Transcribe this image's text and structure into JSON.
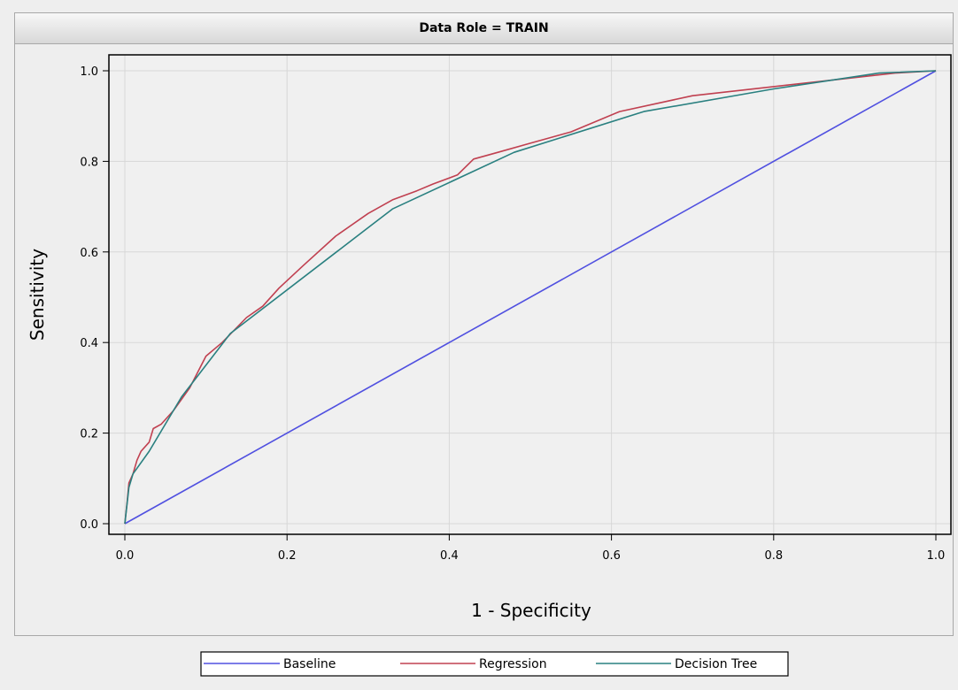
{
  "chart_data": {
    "type": "line",
    "title": "Data Role = TRAIN",
    "xlabel": "1 - Specificity",
    "ylabel": "Sensitivity",
    "xlim": [
      0,
      1
    ],
    "ylim": [
      0,
      1
    ],
    "x_ticks": [
      "0.0",
      "0.2",
      "0.4",
      "0.6",
      "0.8",
      "1.0"
    ],
    "y_ticks": [
      "0.0",
      "0.2",
      "0.4",
      "0.6",
      "0.8",
      "1.0"
    ],
    "grid": true,
    "legend_position": "bottom",
    "series": [
      {
        "name": "Baseline",
        "color": "#5050e0",
        "points": [
          [
            0,
            0
          ],
          [
            1,
            1
          ]
        ]
      },
      {
        "name": "Regression",
        "color": "#c04050",
        "points": [
          [
            0,
            0
          ],
          [
            0.003,
            0.05
          ],
          [
            0.005,
            0.09
          ],
          [
            0.01,
            0.11
          ],
          [
            0.015,
            0.14
          ],
          [
            0.02,
            0.16
          ],
          [
            0.03,
            0.18
          ],
          [
            0.035,
            0.21
          ],
          [
            0.045,
            0.22
          ],
          [
            0.06,
            0.25
          ],
          [
            0.08,
            0.3
          ],
          [
            0.1,
            0.37
          ],
          [
            0.12,
            0.4
          ],
          [
            0.15,
            0.455
          ],
          [
            0.17,
            0.48
          ],
          [
            0.19,
            0.52
          ],
          [
            0.22,
            0.57
          ],
          [
            0.26,
            0.635
          ],
          [
            0.3,
            0.685
          ],
          [
            0.33,
            0.715
          ],
          [
            0.36,
            0.735
          ],
          [
            0.38,
            0.75
          ],
          [
            0.41,
            0.77
          ],
          [
            0.43,
            0.805
          ],
          [
            0.46,
            0.82
          ],
          [
            0.5,
            0.84
          ],
          [
            0.55,
            0.865
          ],
          [
            0.61,
            0.91
          ],
          [
            0.7,
            0.945
          ],
          [
            0.8,
            0.965
          ],
          [
            0.9,
            0.985
          ],
          [
            0.95,
            0.995
          ],
          [
            1.0,
            1.0
          ]
        ]
      },
      {
        "name": "Decision Tree",
        "color": "#2a8080",
        "points": [
          [
            0,
            0
          ],
          [
            0.005,
            0.08
          ],
          [
            0.01,
            0.11
          ],
          [
            0.03,
            0.16
          ],
          [
            0.07,
            0.28
          ],
          [
            0.13,
            0.42
          ],
          [
            0.33,
            0.695
          ],
          [
            0.48,
            0.82
          ],
          [
            0.64,
            0.91
          ],
          [
            0.8,
            0.96
          ],
          [
            0.93,
            0.995
          ],
          [
            1.0,
            1.0
          ]
        ]
      }
    ]
  }
}
